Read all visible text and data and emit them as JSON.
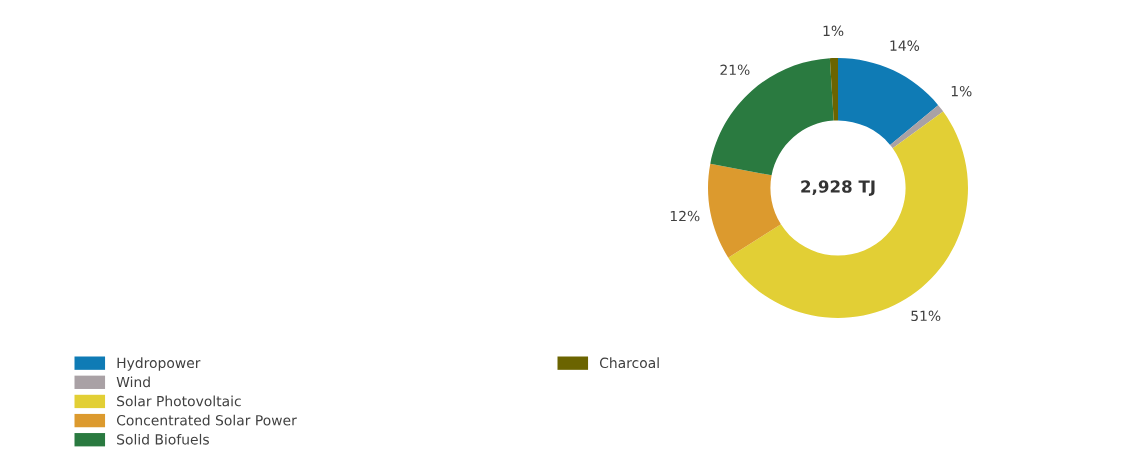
{
  "chart_data": {
    "type": "donut",
    "categories": [
      "Hydropower",
      "Wind",
      "Solar Photovoltaic",
      "Concentrated Solar Power",
      "Solid Biofuels",
      "Charcoal"
    ],
    "values": [
      14,
      1,
      51,
      12,
      21,
      1
    ],
    "colors": [
      "#0f7bb5",
      "#a9a1a5",
      "#e2cf35",
      "#dc9a2e",
      "#2a7a40",
      "#6b6400"
    ],
    "value_labels": [
      "14%",
      "1%",
      "51%",
      "12%",
      "21%",
      "1%"
    ],
    "annotations": [
      "2,928 TJ"
    ],
    "legend": "bottom left"
  }
}
